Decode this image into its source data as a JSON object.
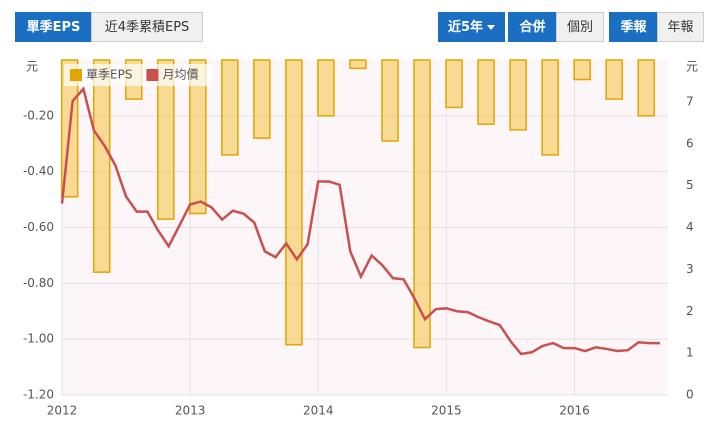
{
  "tabs": [
    "單季EPS",
    "近4季累積EPS",
    "近5年",
    "合併",
    "個別",
    "季報",
    "年報"
  ],
  "chart_data": {
    "type": "bar-line",
    "y_unit": "元",
    "y2_unit": "元",
    "xlim": [
      2012,
      2016.73
    ],
    "xticks": [
      2012,
      2013,
      2014,
      2015,
      2016
    ],
    "ylim": [
      -1.2,
      0
    ],
    "yticks": [
      {
        "value": -0.2,
        "label": "-0.20"
      },
      {
        "value": -0.4,
        "label": "-0.40"
      },
      {
        "value": -0.6,
        "label": "-0.60"
      },
      {
        "value": -0.8,
        "label": "-0.80"
      },
      {
        "value": -1.0,
        "label": "-1.00"
      },
      {
        "value": -1.2,
        "label": "-1.20"
      }
    ],
    "y2lim": [
      0,
      8
    ],
    "y2ticks": [
      0,
      1,
      2,
      3,
      4,
      5,
      6,
      7
    ],
    "grid": true,
    "legend": "top-left",
    "series": [
      {
        "name": "單季EPS",
        "type": "bar",
        "color": "#f5c242",
        "x": [
          2012.06,
          2012.31,
          2012.56,
          2012.81,
          2013.06,
          2013.31,
          2013.56,
          2013.81,
          2014.06,
          2014.31,
          2014.56,
          2014.81,
          2015.06,
          2015.31,
          2015.56,
          2015.81,
          2016.06,
          2016.31,
          2016.56
        ],
        "values": [
          -0.49,
          -0.76,
          -0.14,
          -0.57,
          -0.55,
          -0.34,
          -0.28,
          -1.02,
          -0.2,
          -0.03,
          -0.29,
          -1.03,
          -0.17,
          -0.23,
          -0.25,
          -0.34,
          -0.07,
          -0.14,
          -0.2
        ]
      },
      {
        "name": "月均價",
        "type": "line",
        "color": "#c9504f",
        "axis": "y2",
        "x": [
          2012.0,
          2012.083,
          2012.167,
          2012.25,
          2012.333,
          2012.417,
          2012.5,
          2012.583,
          2012.667,
          2012.75,
          2012.833,
          2012.917,
          2013.0,
          2013.083,
          2013.167,
          2013.25,
          2013.333,
          2013.417,
          2013.5,
          2013.583,
          2013.667,
          2013.75,
          2013.833,
          2013.917,
          2014.0,
          2014.083,
          2014.167,
          2014.25,
          2014.333,
          2014.417,
          2014.5,
          2014.583,
          2014.667,
          2014.75,
          2014.833,
          2014.917,
          2015.0,
          2015.083,
          2015.167,
          2015.25,
          2015.333,
          2015.417,
          2015.5,
          2015.583,
          2015.667,
          2015.75,
          2015.833,
          2015.917,
          2016.0,
          2016.083,
          2016.167,
          2016.25,
          2016.333,
          2016.417,
          2016.5,
          2016.583,
          2016.667
        ],
        "values": [
          4.57,
          7.02,
          7.31,
          6.31,
          5.95,
          5.48,
          4.74,
          4.38,
          4.38,
          3.93,
          3.55,
          4.05,
          4.55,
          4.62,
          4.48,
          4.19,
          4.4,
          4.33,
          4.12,
          3.43,
          3.29,
          3.62,
          3.24,
          3.6,
          5.1,
          5.1,
          5.02,
          3.43,
          2.83,
          3.33,
          3.1,
          2.79,
          2.76,
          2.31,
          1.81,
          2.05,
          2.07,
          2.0,
          1.98,
          1.86,
          1.76,
          1.67,
          1.29,
          0.98,
          1.02,
          1.17,
          1.24,
          1.12,
          1.12,
          1.05,
          1.14,
          1.1,
          1.05,
          1.07,
          1.26,
          1.24,
          1.24
        ]
      }
    ]
  }
}
